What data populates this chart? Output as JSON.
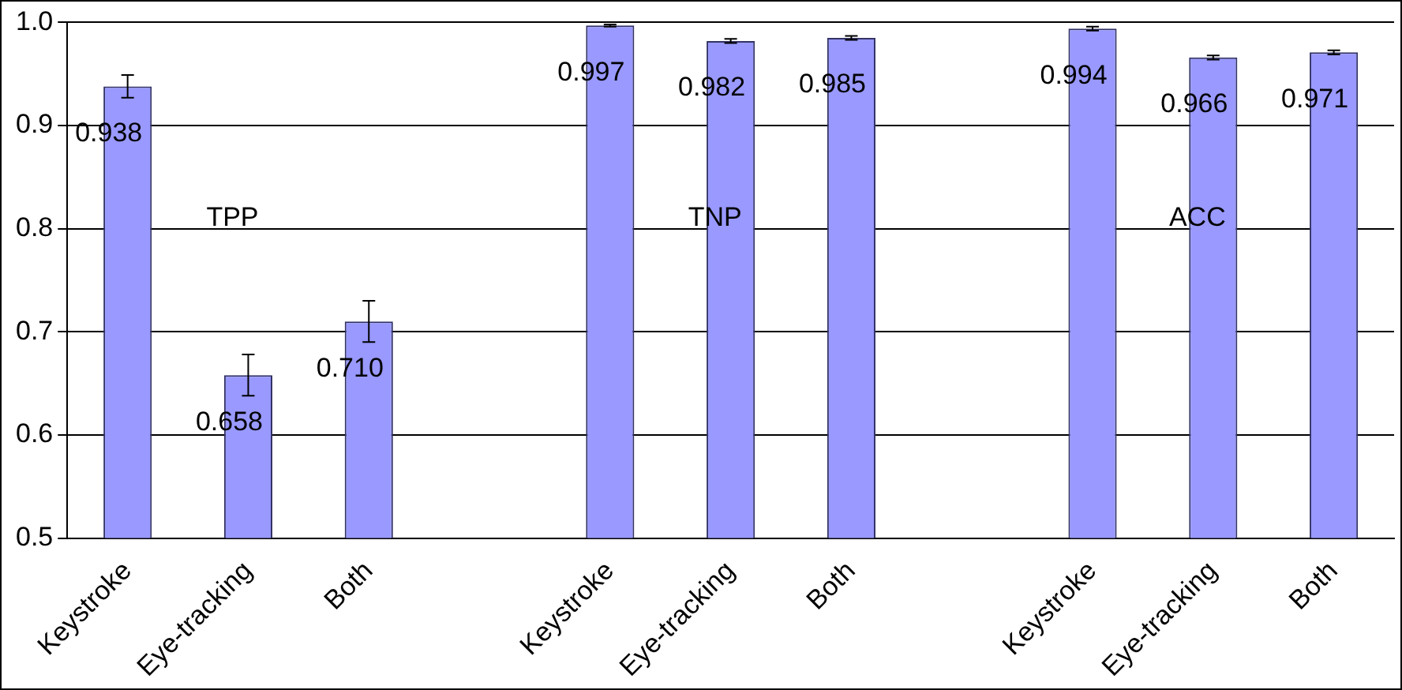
{
  "chart_data": {
    "type": "bar",
    "categories": [
      "Keystroke",
      "Eye-tracking",
      "Both",
      null,
      "Keystroke",
      "Eye-tracking",
      "Both",
      null,
      "Keystroke",
      "Eye-tracking",
      "Both"
    ],
    "values": [
      0.938,
      0.658,
      0.71,
      null,
      0.997,
      0.982,
      0.985,
      null,
      0.994,
      0.966,
      0.971
    ],
    "value_labels": [
      "0.938",
      "0.658",
      "0.710",
      null,
      "0.997",
      "0.982",
      "0.985",
      null,
      "0.994",
      "0.966",
      "0.971"
    ],
    "errors": [
      0.011,
      0.02,
      0.02,
      null,
      0.001,
      0.002,
      0.002,
      null,
      0.002,
      0.002,
      0.002
    ],
    "color": "#9999ff",
    "ylim": [
      0.5,
      1.0
    ],
    "yticks": [
      {
        "value": 0.5,
        "label": "0.5"
      },
      {
        "value": 0.6,
        "label": "0.6"
      },
      {
        "value": 0.7,
        "label": "0.7"
      },
      {
        "value": 0.8,
        "label": "0.8"
      },
      {
        "value": 0.9,
        "label": "0.9"
      },
      {
        "value": 1.0,
        "label": "1.0"
      }
    ],
    "grid": "y",
    "legend": false,
    "annotations": [
      "TPP",
      "TNP",
      "ACC"
    ]
  }
}
